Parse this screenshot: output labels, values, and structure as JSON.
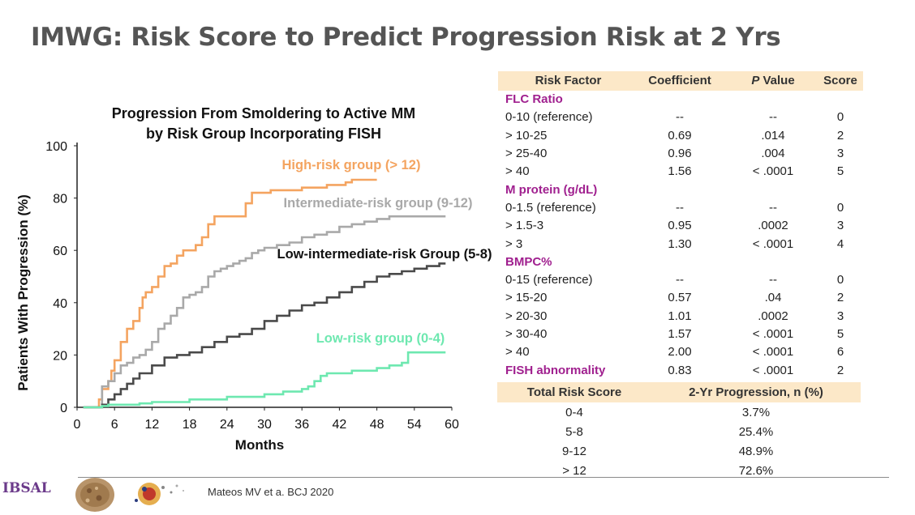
{
  "slide_title": "IMWG: Risk Score to Predict Progression Risk at 2 Yrs",
  "chart_data": {
    "type": "line",
    "title": "Progression From Smoldering to Active MM\nby Risk Group Incorporating FISH",
    "title_lines": [
      "Progression From Smoldering to Active MM",
      "by Risk Group Incorporating FISH"
    ],
    "xlabel": "Months",
    "ylabel": "Patients With Progression (%)",
    "xlim": [
      0,
      60
    ],
    "ylim": [
      0,
      100
    ],
    "x_ticks": [
      0,
      6,
      12,
      18,
      24,
      30,
      36,
      42,
      48,
      54,
      60
    ],
    "y_ticks": [
      0,
      20,
      40,
      60,
      80,
      100
    ],
    "grid": false,
    "legend": "inline labels",
    "series": [
      {
        "name": "High-risk group (> 12)",
        "color": "#f4a460",
        "x": [
          1,
          3,
          3.5,
          4,
          5,
          5.5,
          6,
          7,
          8,
          9,
          10,
          10.5,
          11,
          12,
          13,
          14,
          15,
          16,
          17,
          18,
          19,
          20,
          21,
          22,
          23,
          24,
          26,
          27,
          28,
          30,
          31,
          33,
          36,
          40,
          43,
          44,
          47,
          48
        ],
        "y": [
          0,
          0,
          3,
          7,
          10,
          14,
          18,
          25,
          30,
          33,
          38,
          42,
          44,
          46,
          50,
          54,
          55,
          58,
          60,
          60,
          62,
          65,
          70,
          73,
          73,
          73,
          73,
          78,
          82,
          82,
          83,
          83,
          84,
          85,
          86,
          87,
          87,
          87
        ]
      },
      {
        "name": "Intermediate-risk group (9-12)",
        "color": "#a9a9a9",
        "x": [
          1,
          3,
          4,
          5,
          6,
          7,
          8,
          9,
          10,
          11,
          12,
          13,
          14,
          15,
          16,
          17,
          18,
          19,
          20,
          21,
          22,
          23,
          24,
          25,
          26,
          27,
          28,
          29,
          30,
          32,
          34,
          36,
          38,
          40,
          42,
          44,
          46,
          48,
          50,
          52,
          55,
          59
        ],
        "y": [
          0,
          0,
          8,
          10,
          13,
          16,
          17,
          19,
          20,
          22,
          25,
          30,
          32,
          35,
          38,
          42,
          43,
          44,
          46,
          50,
          52,
          53,
          54,
          55,
          56,
          57,
          59,
          60,
          61,
          62,
          63,
          65,
          66,
          67,
          69,
          70,
          71,
          72,
          73,
          73,
          73,
          73
        ]
      },
      {
        "name": "Low-intermediate-risk Group (5-8)",
        "color": "#4a4a4a",
        "x": [
          1,
          3,
          4,
          5,
          6,
          7,
          8,
          9,
          10,
          12,
          14,
          16,
          18,
          20,
          22,
          24,
          26,
          28,
          30,
          32,
          34,
          36,
          38,
          40,
          42,
          44,
          46,
          48,
          50,
          52,
          54,
          56,
          58,
          59
        ],
        "y": [
          0,
          0,
          1,
          3,
          5,
          7,
          9,
          11,
          13,
          16,
          19,
          20,
          21,
          23,
          25,
          27,
          28,
          30,
          33,
          35,
          37,
          39,
          40,
          42,
          44,
          46,
          48,
          50,
          51,
          52,
          53,
          54,
          55,
          55
        ]
      },
      {
        "name": "Low-risk group (0-4)",
        "color": "#6ee8b0",
        "x": [
          1,
          3,
          4,
          5,
          6,
          8,
          10,
          12,
          15,
          18,
          21,
          24,
          27,
          30,
          33,
          36,
          37,
          38,
          39,
          40,
          42,
          44,
          47,
          48,
          50,
          52,
          53,
          54,
          56,
          59
        ],
        "y": [
          0,
          0,
          0.5,
          1,
          1,
          1,
          1.5,
          2,
          2,
          3,
          3,
          4,
          4,
          5,
          6,
          7,
          8,
          10,
          12,
          13,
          13,
          14,
          14,
          15,
          16,
          17,
          21,
          21,
          21,
          21
        ]
      }
    ]
  },
  "risk_table": {
    "headers": [
      "Risk Factor",
      "Coefficient",
      "P Value",
      "Score"
    ],
    "header_p_italic": "P",
    "header_p_rest": " Value",
    "sections": [
      {
        "name": "FLC Ratio",
        "rows": [
          [
            "0-10 (reference)",
            "--",
            "--",
            "0"
          ],
          [
            "> 10-25",
            "0.69",
            ".014",
            "2"
          ],
          [
            "> 25-40",
            "0.96",
            ".004",
            "3"
          ],
          [
            "> 40",
            "1.56",
            "< .0001",
            "5"
          ]
        ]
      },
      {
        "name": "M protein (g/dL)",
        "rows": [
          [
            "0-1.5 (reference)",
            "--",
            "--",
            "0"
          ],
          [
            "> 1.5-3",
            "0.95",
            ".0002",
            "3"
          ],
          [
            "> 3",
            "1.30",
            "< .0001",
            "4"
          ]
        ]
      },
      {
        "name": "BMPC%",
        "rows": [
          [
            "0-15 (reference)",
            "--",
            "--",
            "0"
          ],
          [
            "> 15-20",
            "0.57",
            ".04",
            "2"
          ],
          [
            "> 20-30",
            "1.01",
            ".0002",
            "3"
          ],
          [
            "> 30-40",
            "1.57",
            "< .0001",
            "5"
          ],
          [
            "> 40",
            "2.00",
            "< .0001",
            "6"
          ]
        ]
      }
    ],
    "fish_row": [
      "FISH abnormality",
      "0.83",
      "< .0001",
      "2"
    ]
  },
  "total_table": {
    "headers": [
      "Total Risk Score",
      "2-Yr Progression, n (%)"
    ],
    "rows": [
      [
        "0-4",
        "3.7%"
      ],
      [
        "5-8",
        "25.4%"
      ],
      [
        "9-12",
        "48.9%"
      ],
      [
        "> 12",
        "72.6%"
      ]
    ]
  },
  "footer": {
    "citation": "Mateos MV et a. BCJ 2020",
    "logo_text": "IBSAL"
  }
}
